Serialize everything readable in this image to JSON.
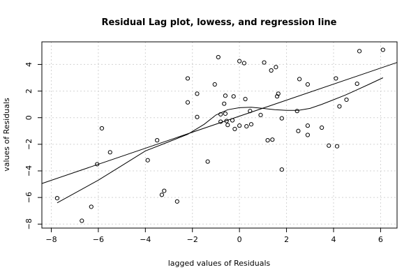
{
  "chart_data": {
    "type": "scatter",
    "title": "Residual Lag plot, lowess, and regression line",
    "xlabel": "lagged values of Residuals",
    "ylabel": "values of Residuals",
    "xlim": [
      -8.4,
      6.7
    ],
    "ylim": [
      -8.3,
      5.7
    ],
    "x_ticks": [
      -8,
      -6,
      -4,
      -2,
      0,
      2,
      4,
      6
    ],
    "y_ticks": [
      -8,
      -6,
      -4,
      -2,
      0,
      2,
      4
    ],
    "grid": true,
    "points": [
      {
        "x": -7.75,
        "y": -6.05
      },
      {
        "x": -6.7,
        "y": -7.75
      },
      {
        "x": -6.3,
        "y": -6.7
      },
      {
        "x": -6.05,
        "y": -3.5
      },
      {
        "x": -5.85,
        "y": -0.8
      },
      {
        "x": -5.5,
        "y": -2.6
      },
      {
        "x": -3.9,
        "y": -3.2
      },
      {
        "x": -3.5,
        "y": -1.7
      },
      {
        "x": -3.3,
        "y": -5.8
      },
      {
        "x": -3.2,
        "y": -5.5
      },
      {
        "x": -2.65,
        "y": -6.3
      },
      {
        "x": -2.2,
        "y": 2.95
      },
      {
        "x": -2.2,
        "y": 1.15
      },
      {
        "x": -1.8,
        "y": 1.8
      },
      {
        "x": -1.8,
        "y": 0.05
      },
      {
        "x": -1.35,
        "y": -3.3
      },
      {
        "x": -1.05,
        "y": 2.5
      },
      {
        "x": -0.9,
        "y": 4.55
      },
      {
        "x": -0.8,
        "y": -0.3
      },
      {
        "x": -0.8,
        "y": 0.25
      },
      {
        "x": -0.65,
        "y": 1.05
      },
      {
        "x": -0.6,
        "y": 1.65
      },
      {
        "x": -0.6,
        "y": 0.3
      },
      {
        "x": -0.55,
        "y": -0.25
      },
      {
        "x": -0.5,
        "y": -0.55
      },
      {
        "x": -0.3,
        "y": -0.2
      },
      {
        "x": -0.25,
        "y": 1.6
      },
      {
        "x": -0.2,
        "y": -0.85
      },
      {
        "x": 0.0,
        "y": 4.25
      },
      {
        "x": 0.0,
        "y": -0.6
      },
      {
        "x": 0.2,
        "y": 4.1
      },
      {
        "x": 0.25,
        "y": 1.4
      },
      {
        "x": 0.3,
        "y": -0.65
      },
      {
        "x": 0.45,
        "y": 0.5
      },
      {
        "x": 0.5,
        "y": -0.5
      },
      {
        "x": 0.9,
        "y": 0.2
      },
      {
        "x": 1.05,
        "y": 4.15
      },
      {
        "x": 1.2,
        "y": -1.7
      },
      {
        "x": 1.35,
        "y": 3.55
      },
      {
        "x": 1.4,
        "y": -1.65
      },
      {
        "x": 1.55,
        "y": 3.8
      },
      {
        "x": 1.6,
        "y": 1.6
      },
      {
        "x": 1.65,
        "y": 1.8
      },
      {
        "x": 1.8,
        "y": -0.05
      },
      {
        "x": 1.8,
        "y": -3.9
      },
      {
        "x": 2.45,
        "y": 0.5
      },
      {
        "x": 2.5,
        "y": -1.0
      },
      {
        "x": 2.55,
        "y": 2.9
      },
      {
        "x": 2.9,
        "y": -0.6
      },
      {
        "x": 2.9,
        "y": -1.3
      },
      {
        "x": 2.9,
        "y": 2.5
      },
      {
        "x": 3.5,
        "y": -0.75
      },
      {
        "x": 3.8,
        "y": -2.1
      },
      {
        "x": 4.1,
        "y": 2.95
      },
      {
        "x": 4.15,
        "y": -2.15
      },
      {
        "x": 4.25,
        "y": 0.85
      },
      {
        "x": 4.55,
        "y": 1.35
      },
      {
        "x": 5.0,
        "y": 2.55
      },
      {
        "x": 5.1,
        "y": 5.0
      },
      {
        "x": 6.1,
        "y": 5.1
      }
    ],
    "regression_line": [
      {
        "x": -8.4,
        "y": -4.95
      },
      {
        "x": 6.7,
        "y": 4.15
      }
    ],
    "lowess": [
      {
        "x": -7.75,
        "y": -6.4
      },
      {
        "x": -6.0,
        "y": -4.7
      },
      {
        "x": -5.0,
        "y": -3.6
      },
      {
        "x": -4.0,
        "y": -2.5
      },
      {
        "x": -3.2,
        "y": -1.95
      },
      {
        "x": -2.2,
        "y": -1.25
      },
      {
        "x": -1.5,
        "y": -0.5
      },
      {
        "x": -1.0,
        "y": 0.2
      },
      {
        "x": -0.5,
        "y": 0.6
      },
      {
        "x": 0.0,
        "y": 0.75
      },
      {
        "x": 0.5,
        "y": 0.78
      },
      {
        "x": 1.0,
        "y": 0.7
      },
      {
        "x": 1.5,
        "y": 0.6
      },
      {
        "x": 2.0,
        "y": 0.55
      },
      {
        "x": 2.5,
        "y": 0.55
      },
      {
        "x": 3.0,
        "y": 0.7
      },
      {
        "x": 3.5,
        "y": 1.0
      },
      {
        "x": 4.0,
        "y": 1.35
      },
      {
        "x": 4.5,
        "y": 1.7
      },
      {
        "x": 5.0,
        "y": 2.1
      },
      {
        "x": 5.5,
        "y": 2.5
      },
      {
        "x": 6.1,
        "y": 3.0
      }
    ]
  }
}
